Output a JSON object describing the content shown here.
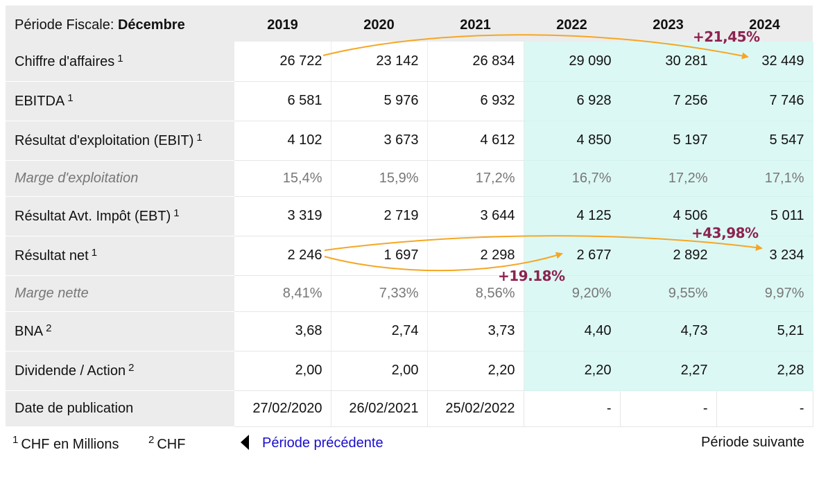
{
  "header": {
    "period_label": "Période Fiscale:",
    "period_value": "Décembre",
    "years": [
      "2019",
      "2020",
      "2021",
      "2022",
      "2023",
      "2024"
    ]
  },
  "rows": [
    {
      "label": "Chiffre d'affaires",
      "note": "1",
      "values": [
        "26 722",
        "23 142",
        "26 834",
        "29 090",
        "30 281",
        "32 449"
      ]
    },
    {
      "label": "EBITDA",
      "note": "1",
      "values": [
        "6 581",
        "5 976",
        "6 932",
        "6 928",
        "7 256",
        "7 746"
      ]
    },
    {
      "label": "Résultat d'exploitation (EBIT)",
      "note": "1",
      "values": [
        "4 102",
        "3 673",
        "4 612",
        "4 850",
        "5 197",
        "5 547"
      ]
    },
    {
      "label": "Marge d'exploitation",
      "note": "",
      "values": [
        "15,4%",
        "15,9%",
        "17,2%",
        "16,7%",
        "17,2%",
        "17,1%"
      ]
    },
    {
      "label": "Résultat Avt. Impôt (EBT)",
      "note": "1",
      "values": [
        "3 319",
        "2 719",
        "3 644",
        "4 125",
        "4 506",
        "5 011"
      ]
    },
    {
      "label": "Résultat net",
      "note": "1",
      "values": [
        "2 246",
        "1 697",
        "2 298",
        "2 677",
        "2 892",
        "3 234"
      ]
    },
    {
      "label": "Marge nette",
      "note": "",
      "values": [
        "8,41%",
        "7,33%",
        "8,56%",
        "9,20%",
        "9,55%",
        "9,97%"
      ]
    },
    {
      "label": "BNA",
      "note": "2",
      "values": [
        "3,68",
        "2,74",
        "3,73",
        "4,40",
        "4,73",
        "5,21"
      ]
    },
    {
      "label": "Dividende / Action",
      "note": "2",
      "values": [
        "2,00",
        "2,00",
        "2,20",
        "2,20",
        "2,27",
        "2,28"
      ]
    },
    {
      "label": "Date de publication",
      "note": "",
      "values": [
        "27/02/2020",
        "26/02/2021",
        "25/02/2022",
        "-",
        "-",
        "-"
      ]
    }
  ],
  "annotations": {
    "revenue_growth": "+21,45%",
    "net_income_growth_long": "+43,98%",
    "net_income_growth_short": "+19.18%",
    "arrow_color": "#f5a623",
    "text_color": "#8b2350"
  },
  "footer": {
    "note1_mark": "1",
    "note1_text": "CHF en Millions",
    "note2_mark": "2",
    "note2_text": "CHF",
    "prev_label": "Période précédente",
    "next_label": "Période suivante"
  },
  "colors": {
    "projection_bg": "#dcf8f4",
    "label_bg": "#ececec",
    "link": "#1a0dcc"
  }
}
